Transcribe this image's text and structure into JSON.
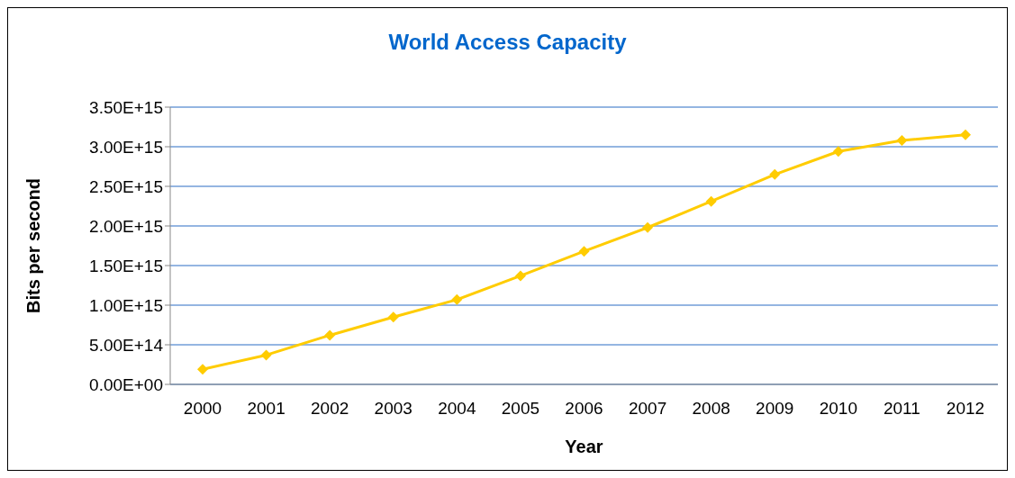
{
  "chart_data": {
    "type": "line",
    "title": "World Access Capacity",
    "xlabel": "Year",
    "ylabel": "Bits per second",
    "categories": [
      "2000",
      "2001",
      "2002",
      "2003",
      "2004",
      "2005",
      "2006",
      "2007",
      "2008",
      "2009",
      "2010",
      "2011",
      "2012"
    ],
    "series": [
      {
        "color": "#ffcc00",
        "values": [
          190000000000000.0,
          370000000000000.0,
          620000000000000.0,
          850000000000000.0,
          1070000000000000.0,
          1370000000000000.0,
          1680000000000000.0,
          1980000000000000.0,
          2310000000000000.0,
          2650000000000000.0,
          2940000000000000.0,
          3080000000000000.0,
          3150000000000000.0
        ]
      }
    ],
    "ylim": [
      0,
      3500000000000000.0
    ],
    "yticks": [
      {
        "value": 0,
        "label": "0.00E+00"
      },
      {
        "value": 500000000000000.0,
        "label": "5.00E+14"
      },
      {
        "value": 1000000000000000.0,
        "label": "1.00E+15"
      },
      {
        "value": 1500000000000000.0,
        "label": "1.50E+15"
      },
      {
        "value": 2000000000000000.0,
        "label": "2.00E+15"
      },
      {
        "value": 2500000000000000.0,
        "label": "2.50E+15"
      },
      {
        "value": 3000000000000000.0,
        "label": "3.00E+15"
      },
      {
        "value": 3500000000000000.0,
        "label": "3.50E+15"
      }
    ],
    "grid": "y",
    "marker": "diamond",
    "line_style": "solid"
  }
}
